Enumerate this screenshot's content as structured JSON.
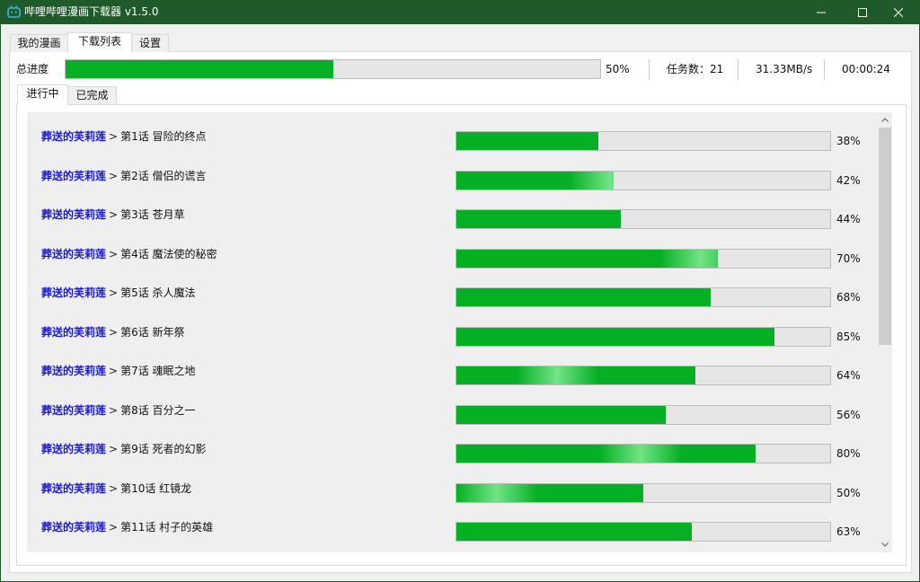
{
  "window": {
    "title": "哔哩哔哩漫画下载器 v1.5.0",
    "icon": "bilibili-tv-icon"
  },
  "top_tabs": [
    {
      "label": "我的漫画",
      "active": false
    },
    {
      "label": "下载列表",
      "active": true
    },
    {
      "label": "设置",
      "active": false
    }
  ],
  "overall": {
    "label": "总进度",
    "progress": 50,
    "progress_text": "50%",
    "task_count": "任务数：21",
    "speed": "31.33MB/s",
    "elapsed": "00:00:24"
  },
  "inner_tabs": [
    {
      "label": "进行中",
      "active": true
    },
    {
      "label": "已完成",
      "active": false
    }
  ],
  "downloads": [
    {
      "comic": "葬送的芙莉莲",
      "separator": ">",
      "chapter": "第1话 冒险的终点",
      "progress": 38,
      "progress_text": "38%"
    },
    {
      "comic": "葬送的芙莉莲",
      "separator": ">",
      "chapter": "第2话 僧侣的谎言",
      "progress": 42,
      "progress_text": "42%"
    },
    {
      "comic": "葬送的芙莉莲",
      "separator": ">",
      "chapter": "第3话 苍月草",
      "progress": 44,
      "progress_text": "44%"
    },
    {
      "comic": "葬送的芙莉莲",
      "separator": ">",
      "chapter": "第4话 魔法使的秘密",
      "progress": 70,
      "progress_text": "70%"
    },
    {
      "comic": "葬送的芙莉莲",
      "separator": ">",
      "chapter": "第5话 杀人魔法",
      "progress": 68,
      "progress_text": "68%"
    },
    {
      "comic": "葬送的芙莉莲",
      "separator": ">",
      "chapter": "第6话 新年祭",
      "progress": 85,
      "progress_text": "85%"
    },
    {
      "comic": "葬送的芙莉莲",
      "separator": ">",
      "chapter": "第7话 魂眠之地",
      "progress": 64,
      "progress_text": "64%"
    },
    {
      "comic": "葬送的芙莉莲",
      "separator": ">",
      "chapter": "第8话 百分之一",
      "progress": 56,
      "progress_text": "56%"
    },
    {
      "comic": "葬送的芙莉莲",
      "separator": ">",
      "chapter": "第9话 死者的幻影",
      "progress": 80,
      "progress_text": "80%"
    },
    {
      "comic": "葬送的芙莉莲",
      "separator": ">",
      "chapter": "第10话 红镜龙",
      "progress": 50,
      "progress_text": "50%"
    },
    {
      "comic": "葬送的芙莉莲",
      "separator": ">",
      "chapter": "第11话 村子的英雄",
      "progress": 63,
      "progress_text": "63%"
    }
  ],
  "colors": {
    "titlebar": "#1f5a2a",
    "progress_fill": "#06b025",
    "progress_track": "#e6e6e6",
    "comic_link": "#1a1ad6"
  }
}
